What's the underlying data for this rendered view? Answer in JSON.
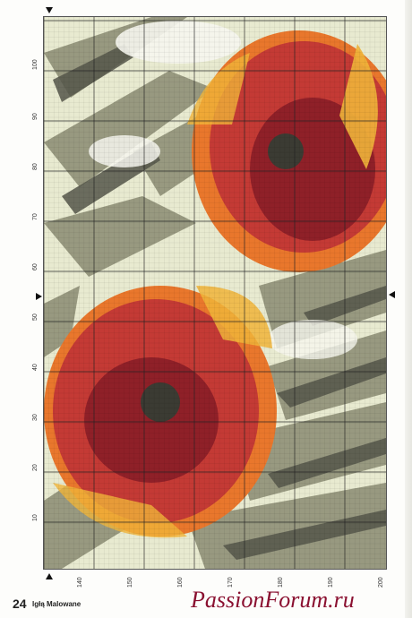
{
  "page": {
    "number": "24",
    "magazine": "Igłą Malowane",
    "watermark": "PassionForum.ru"
  },
  "chart_data": {
    "type": "cross-stitch pattern",
    "title": "",
    "left_axis_labels": [
      "100",
      "90",
      "80",
      "70",
      "60",
      "50",
      "40",
      "30",
      "20",
      "10"
    ],
    "bottom_axis_labels": [
      "140",
      "150",
      "160",
      "170",
      "180",
      "190",
      "200"
    ],
    "colors": {
      "background_light": "#e8ead0",
      "leaf_gray": "#8f9077",
      "leaf_dark": "#55564a",
      "petal_red": "#c43a35",
      "petal_dark_red": "#8f2028",
      "petal_orange": "#e9772c",
      "petal_yellow": "#f0b43a",
      "flower_center": "#3b3b33",
      "white_highlight": "#f6f6ee"
    }
  }
}
